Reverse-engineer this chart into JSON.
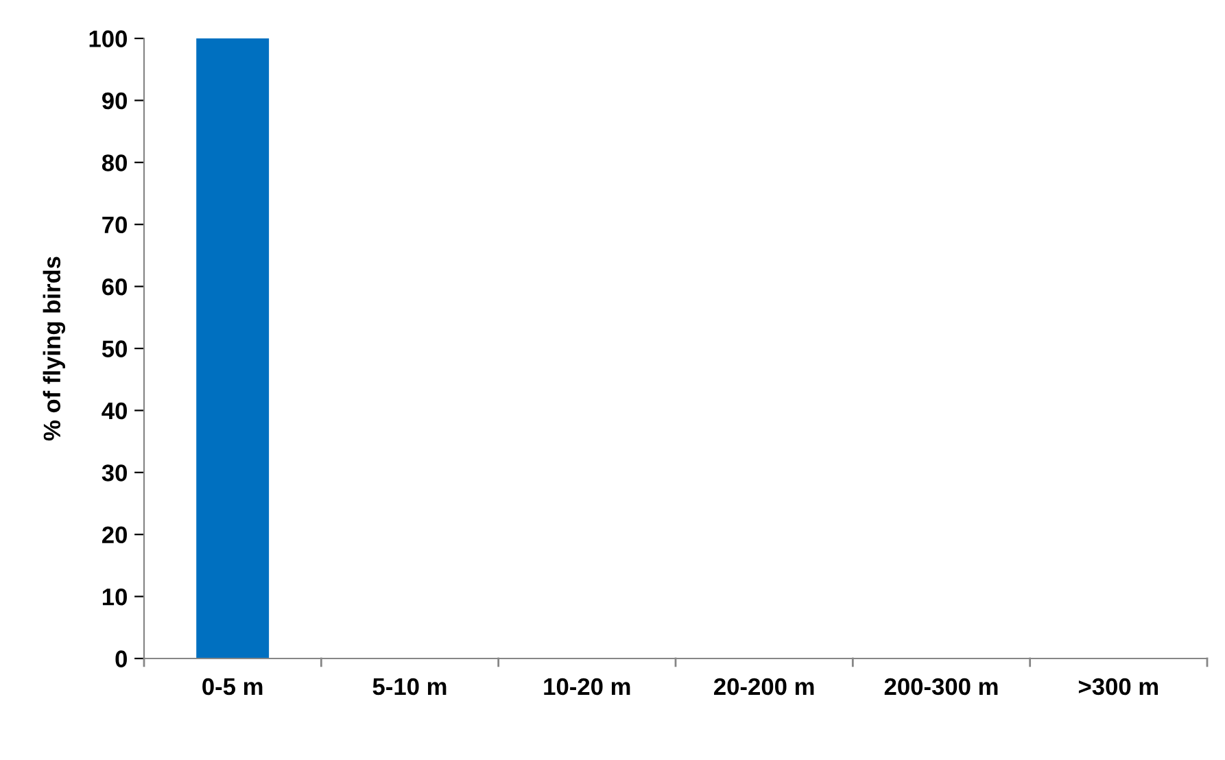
{
  "chart_data": {
    "type": "bar",
    "ylabel": "% of flying birds",
    "categories": [
      "0-5 m",
      "5-10 m",
      "10-20 m",
      "20-200 m",
      "200-300 m",
      ">300 m"
    ],
    "values": [
      100,
      0,
      0,
      0,
      0,
      0
    ],
    "color": "#0070c0",
    "ylim": [
      0,
      100
    ],
    "yticks": [
      0,
      10,
      20,
      30,
      40,
      50,
      60,
      70,
      80,
      90,
      100
    ],
    "grid": false,
    "legend": false
  }
}
